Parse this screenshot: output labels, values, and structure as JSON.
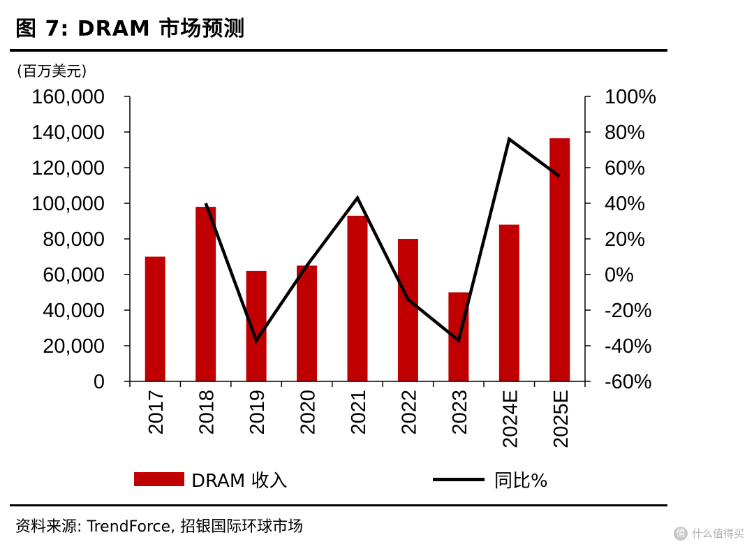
{
  "figure": {
    "title": "图 7: DRAM 市场预测",
    "unit": "(百万美元)",
    "source": "资料来源: TrendForce, 招银国际环球市场",
    "watermark": "什么值得买"
  },
  "legend": {
    "bar_label": "DRAM 收入",
    "line_label": "同比%"
  },
  "colors": {
    "bar": "#c00000",
    "line": "#000000"
  },
  "chart_data": {
    "type": "bar+line",
    "title": "DRAM 市场预测",
    "categories": [
      "2017",
      "2018",
      "2019",
      "2020",
      "2021",
      "2022",
      "2023",
      "2024E",
      "2025E"
    ],
    "series": [
      {
        "name": "DRAM 收入",
        "type": "bar",
        "axis": "left",
        "values": [
          70000,
          98000,
          62000,
          65000,
          93000,
          80000,
          50000,
          88000,
          136500
        ]
      },
      {
        "name": "同比%",
        "type": "line",
        "axis": "right",
        "values": [
          null,
          40,
          -37,
          5,
          43,
          -14,
          -37,
          76,
          55
        ]
      }
    ],
    "y_left": {
      "ylim": [
        0,
        160000
      ],
      "ticks": [
        0,
        20000,
        40000,
        60000,
        80000,
        100000,
        120000,
        140000,
        160000
      ],
      "tick_labels": [
        "0",
        "20,000",
        "40,000",
        "60,000",
        "80,000",
        "100,000",
        "120,000",
        "140,000",
        "160,000"
      ]
    },
    "y_right": {
      "ylim": [
        -60,
        100
      ],
      "ticks": [
        -60,
        -40,
        -20,
        0,
        20,
        40,
        60,
        80,
        100
      ],
      "tick_labels": [
        "-60%",
        "-40%",
        "-20%",
        "0%",
        "20%",
        "40%",
        "60%",
        "80%",
        "100%"
      ]
    },
    "ylabel": "(百万美元)",
    "legend_position": "bottom"
  }
}
